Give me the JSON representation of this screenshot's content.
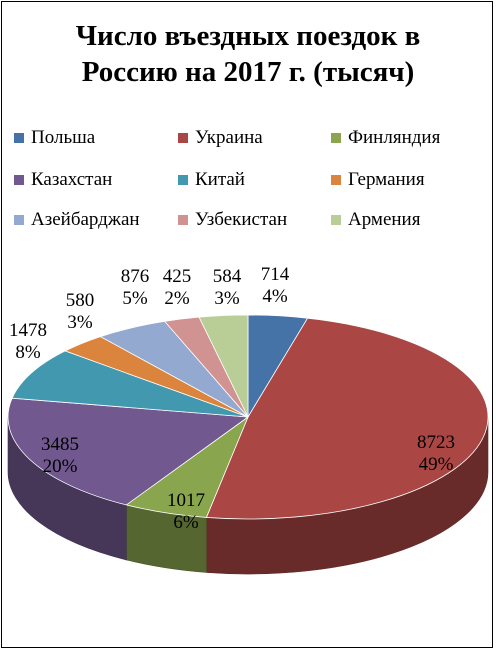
{
  "chart_data": {
    "type": "pie",
    "title": "Число въездных поездок в Россию на 2017 г. (тысяч)",
    "three_d": true,
    "legend_position": "top",
    "categories": [
      "Польша",
      "Украина",
      "Финляндия",
      "Казахстан",
      "Китай",
      "Германия",
      "Азейбарджан",
      "Узбекистан",
      "Армения"
    ],
    "values": [
      714,
      8723,
      1017,
      3485,
      1478,
      580,
      876,
      425,
      584
    ],
    "percent_labels": [
      "4%",
      "49%",
      "6%",
      "20%",
      "8%",
      "3%",
      "5%",
      "2%",
      "3%"
    ],
    "colors": [
      "#4572A7",
      "#AA4643",
      "#89A54E",
      "#71588F",
      "#4198AF",
      "#DB843D",
      "#93A9CF",
      "#D19392",
      "#B9CD96"
    ]
  }
}
